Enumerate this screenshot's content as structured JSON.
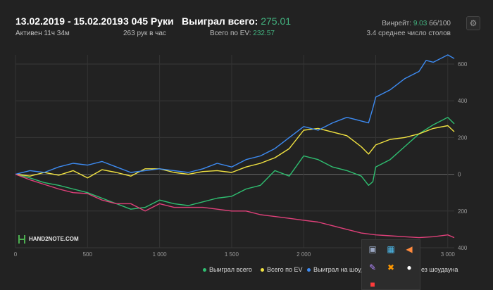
{
  "header": {
    "date_range": "13.02.2019 - 15.02.2019",
    "active_time": "Активен 11ч 34м",
    "hands": "3 045 Руки",
    "hands_per_hour": "263 рук в час",
    "won_total_label": "Выиграл всего:",
    "won_total_value": "275.01",
    "ev_label": "Всего по EV:",
    "ev_value": "232.57",
    "winrate_label": "Винрейт:",
    "winrate_value": "9.03",
    "winrate_unit": "бб/100",
    "avg_tables": "3.4 среднее число столов"
  },
  "colors": {
    "won": "#2fbf71",
    "ev": "#f2e341",
    "showdown": "#3d8bf2",
    "nonshowdown": "#e0407a"
  },
  "logo": {
    "text": "HAND2NOTE.COM"
  },
  "legend": {
    "won": "Выиграл всего",
    "ev": "Всего по EV",
    "showdown": "Выиграл на шоуд",
    "nonshowdown": "ез шоудауна"
  },
  "tray": {
    "icons": [
      "monitor-icon",
      "app-icon",
      "volume-icon",
      "pen-icon",
      "bluetooth-icon",
      "discord-icon",
      "red-app-icon"
    ]
  },
  "chart_data": {
    "type": "line",
    "xlim": [
      0,
      3045
    ],
    "ylim": [
      -400,
      650
    ],
    "x_ticks": [
      0,
      500,
      1000,
      1500,
      2000,
      2500,
      3000
    ],
    "x_tick_labels": [
      "0",
      "500",
      "1 000",
      "1 500",
      "2 000",
      "2 500",
      "3 000"
    ],
    "y_ticks": [
      600,
      400,
      200,
      0,
      -200,
      -400
    ],
    "y_tick_labels": [
      "600",
      "400",
      "200",
      "0",
      "200",
      "400"
    ],
    "grid": true,
    "series": [
      {
        "name": "Выиграл всего",
        "key": "won",
        "x": [
          0,
          100,
          200,
          300,
          400,
          500,
          600,
          700,
          800,
          900,
          1000,
          1100,
          1200,
          1300,
          1400,
          1500,
          1600,
          1700,
          1800,
          1900,
          2000,
          2100,
          2200,
          2300,
          2400,
          2450,
          2480,
          2500,
          2600,
          2700,
          2800,
          2900,
          3000,
          3045
        ],
        "y": [
          0,
          -20,
          -45,
          -60,
          -80,
          -100,
          -130,
          -160,
          -190,
          -180,
          -140,
          -160,
          -170,
          -150,
          -130,
          -120,
          -80,
          -60,
          20,
          -10,
          100,
          80,
          40,
          20,
          -10,
          -60,
          -40,
          40,
          80,
          150,
          220,
          270,
          310,
          275
        ]
      },
      {
        "name": "Всего по EV",
        "key": "ev",
        "x": [
          0,
          100,
          200,
          300,
          400,
          500,
          600,
          700,
          800,
          900,
          1000,
          1100,
          1200,
          1300,
          1400,
          1500,
          1600,
          1700,
          1800,
          1900,
          2000,
          2100,
          2200,
          2300,
          2400,
          2450,
          2500,
          2600,
          2700,
          2800,
          2900,
          3000,
          3045
        ],
        "y": [
          0,
          -10,
          10,
          -5,
          20,
          -20,
          25,
          10,
          -10,
          30,
          30,
          10,
          0,
          15,
          20,
          10,
          40,
          60,
          90,
          140,
          240,
          250,
          230,
          210,
          150,
          110,
          160,
          190,
          200,
          220,
          250,
          265,
          232
        ]
      },
      {
        "name": "Выиграл на шоудауне",
        "key": "showdown",
        "x": [
          0,
          100,
          200,
          300,
          400,
          500,
          600,
          700,
          800,
          900,
          1000,
          1100,
          1200,
          1300,
          1400,
          1500,
          1600,
          1700,
          1800,
          1900,
          2000,
          2100,
          2200,
          2300,
          2400,
          2450,
          2480,
          2500,
          2600,
          2700,
          2800,
          2850,
          2900,
          3000,
          3045
        ],
        "y": [
          0,
          20,
          10,
          40,
          60,
          50,
          70,
          40,
          10,
          20,
          30,
          20,
          10,
          30,
          60,
          40,
          80,
          100,
          140,
          200,
          260,
          240,
          280,
          310,
          290,
          280,
          360,
          420,
          460,
          520,
          560,
          620,
          610,
          650,
          630
        ]
      },
      {
        "name": "Выиграл без шоудауна",
        "key": "nonshowdown",
        "x": [
          0,
          100,
          200,
          300,
          400,
          500,
          600,
          700,
          800,
          900,
          1000,
          1100,
          1200,
          1300,
          1400,
          1500,
          1600,
          1700,
          1800,
          1900,
          2000,
          2100,
          2200,
          2300,
          2400,
          2500,
          2600,
          2700,
          2800,
          2900,
          3000,
          3045
        ],
        "y": [
          0,
          -30,
          -55,
          -80,
          -100,
          -105,
          -140,
          -160,
          -160,
          -200,
          -160,
          -180,
          -180,
          -180,
          -190,
          -200,
          -200,
          -220,
          -230,
          -240,
          -250,
          -260,
          -280,
          -300,
          -320,
          -330,
          -335,
          -340,
          -345,
          -340,
          -330,
          -345
        ]
      }
    ]
  }
}
